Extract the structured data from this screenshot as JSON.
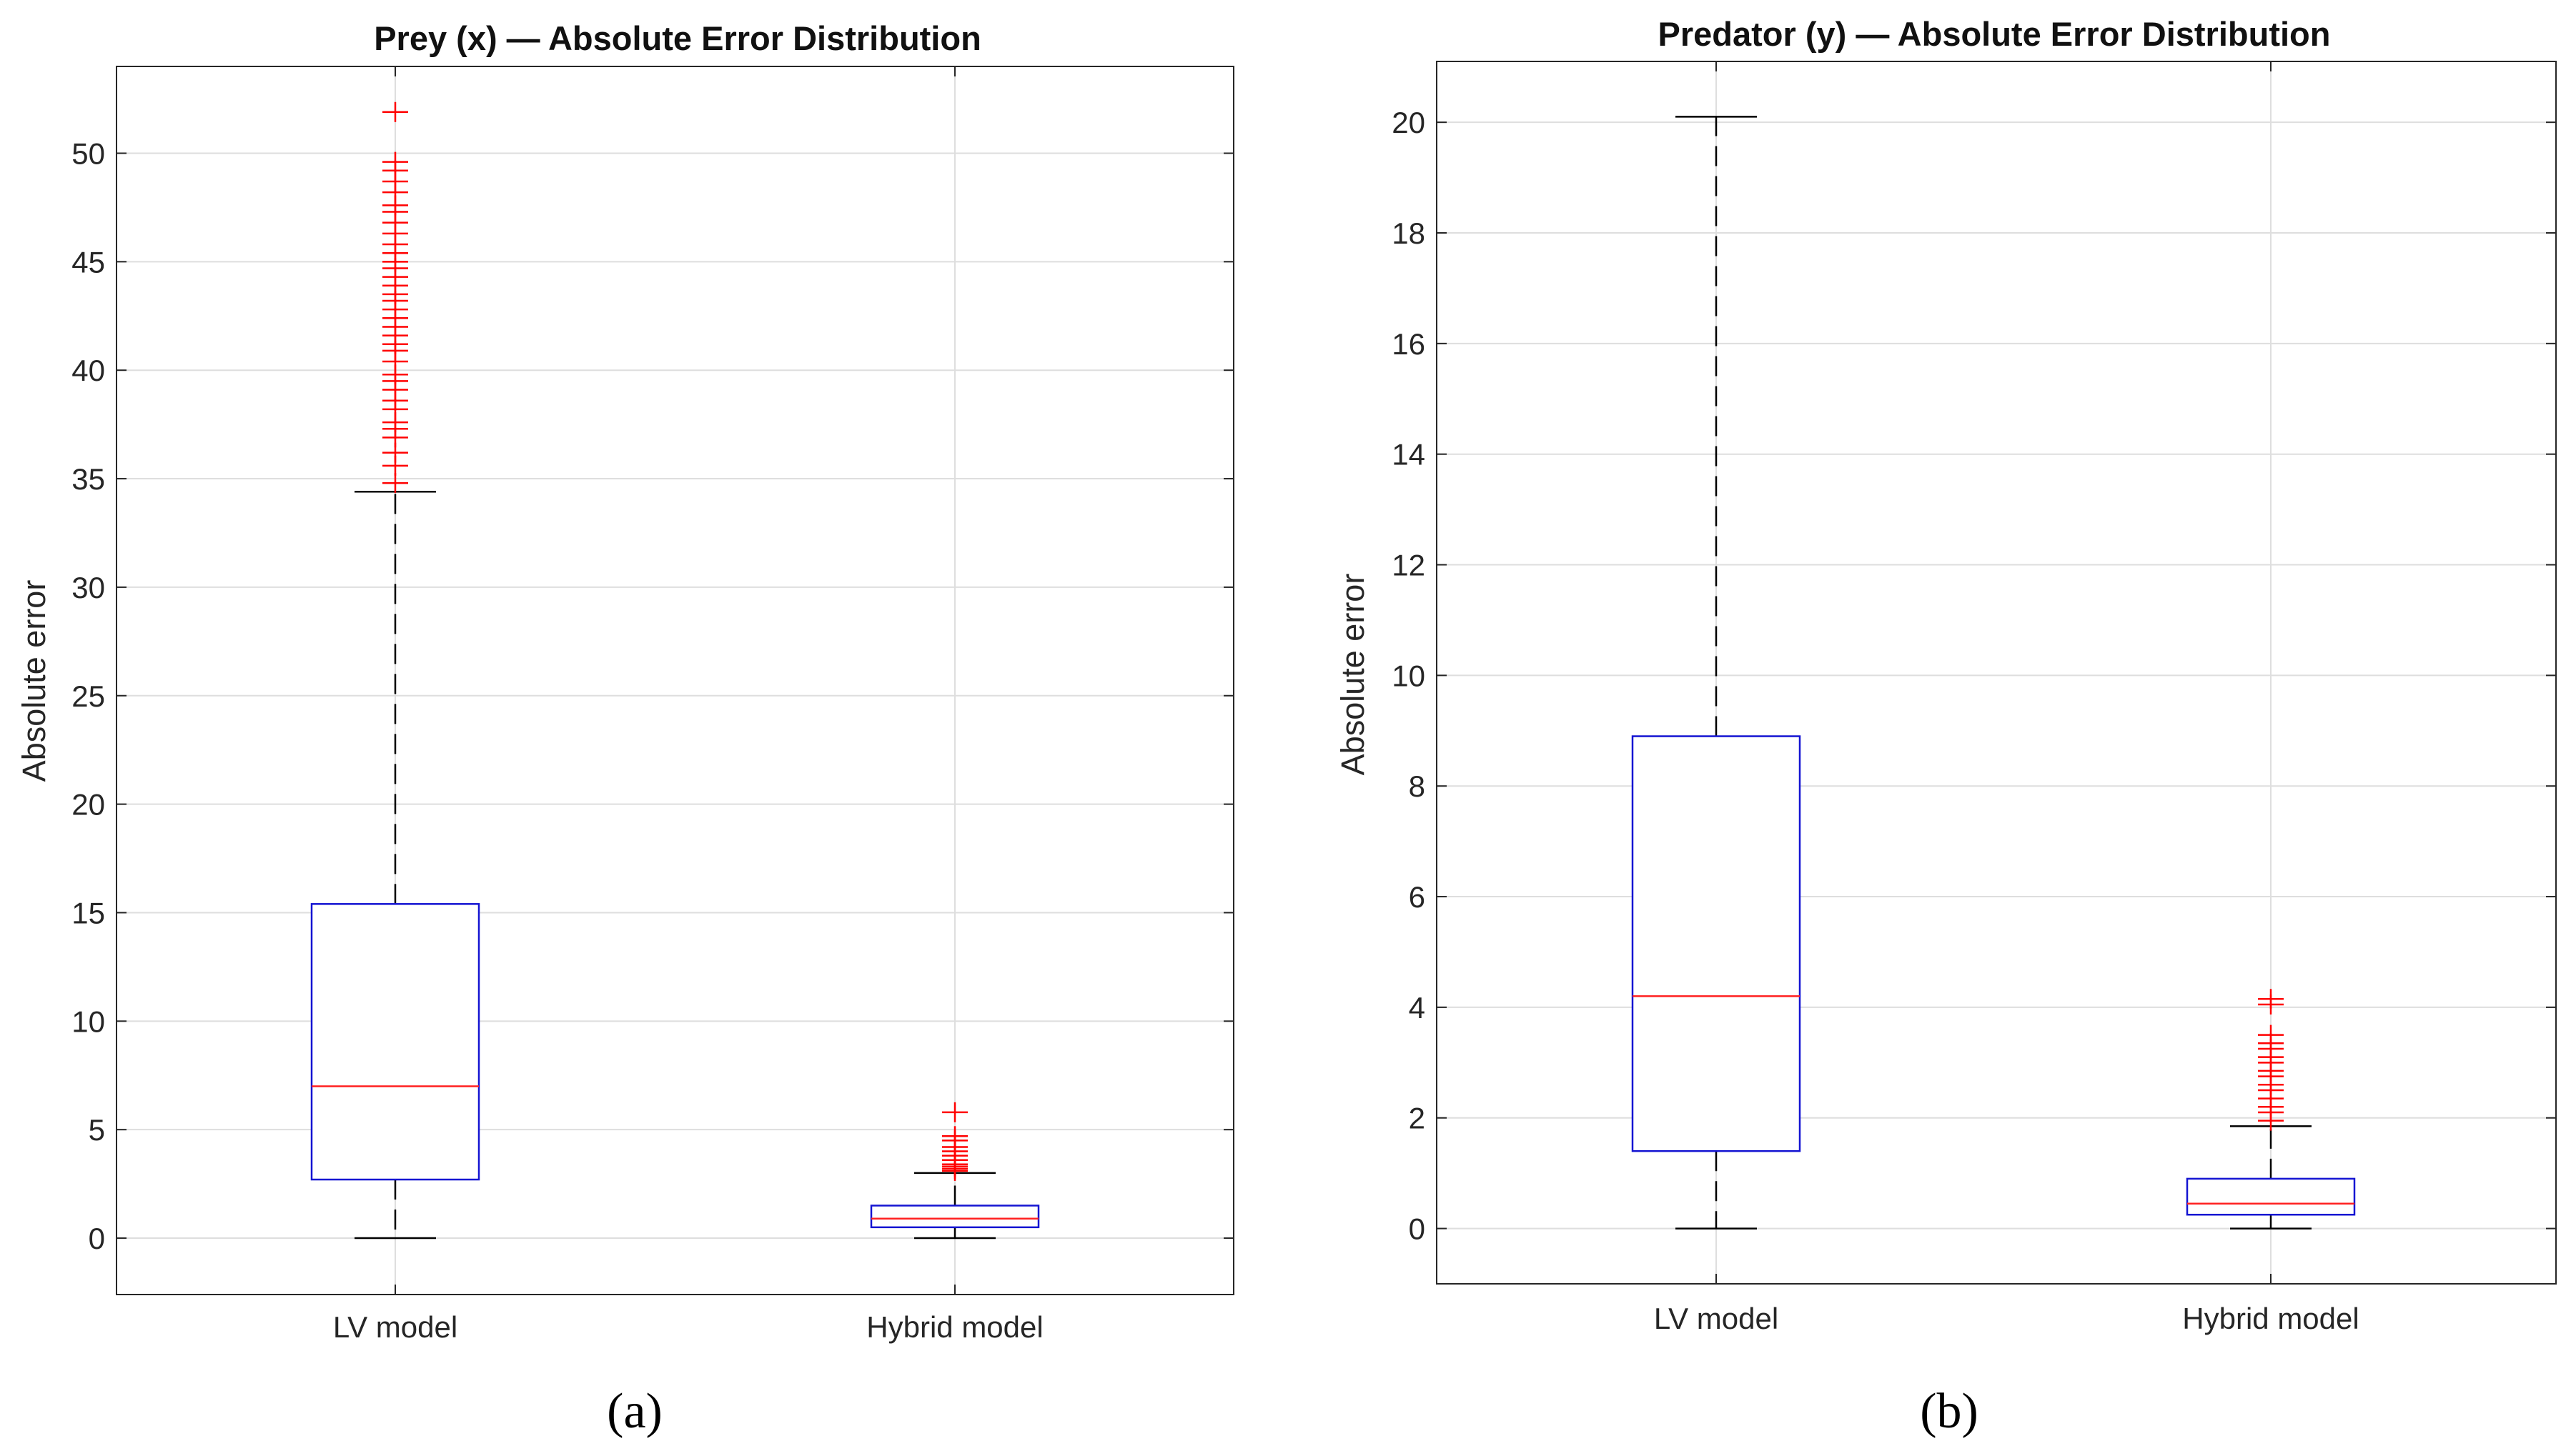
{
  "chart_data": [
    {
      "type": "boxplot",
      "title": "Prey (x) — Absolute Error Distribution",
      "ylabel": "Absolute error",
      "xlabel": "",
      "ylim": [
        -2.6,
        54
      ],
      "yticks": [
        0,
        5,
        10,
        15,
        20,
        25,
        30,
        35,
        40,
        45,
        50
      ],
      "grid": true,
      "sublabel": "(a)",
      "series": [
        {
          "name": "LV model",
          "q1": 2.7,
          "median": 7.0,
          "q3": 15.4,
          "whisker_low": 0.0,
          "whisker_high": 34.4,
          "outliers": [
            34.8,
            35.6,
            36.2,
            36.9,
            37.3,
            37.6,
            38.2,
            38.6,
            39.1,
            39.5,
            39.8,
            40.4,
            40.9,
            41.2,
            41.6,
            42.0,
            42.4,
            42.8,
            43.2,
            43.5,
            43.9,
            44.3,
            44.7,
            45.0,
            45.4,
            45.8,
            46.3,
            46.8,
            47.3,
            47.6,
            48.2,
            48.7,
            49.2,
            49.6,
            51.9
          ]
        },
        {
          "name": "Hybrid model",
          "q1": 0.5,
          "median": 0.9,
          "q3": 1.5,
          "whisker_low": 0.0,
          "whisker_high": 3.0,
          "outliers": [
            3.1,
            3.2,
            3.3,
            3.4,
            3.6,
            3.8,
            4.0,
            4.2,
            4.5,
            4.7,
            5.8
          ]
        }
      ]
    },
    {
      "type": "boxplot",
      "title": "Predator (y) — Absolute Error Distribution",
      "ylabel": "Absolute error",
      "xlabel": "",
      "ylim": [
        -1.0,
        21.1
      ],
      "yticks": [
        0,
        2,
        4,
        6,
        8,
        10,
        12,
        14,
        16,
        18,
        20
      ],
      "grid": true,
      "sublabel": "(b)",
      "series": [
        {
          "name": "LV model",
          "q1": 1.4,
          "median": 4.2,
          "q3": 8.9,
          "whisker_low": 0.0,
          "whisker_high": 20.1,
          "outliers": []
        },
        {
          "name": "Hybrid model",
          "q1": 0.25,
          "median": 0.45,
          "q3": 0.9,
          "whisker_low": 0.0,
          "whisker_high": 1.85,
          "outliers": [
            1.95,
            2.1,
            2.2,
            2.35,
            2.5,
            2.6,
            2.75,
            2.85,
            3.0,
            3.1,
            3.25,
            3.35,
            3.5,
            4.05,
            4.15
          ]
        }
      ]
    }
  ]
}
